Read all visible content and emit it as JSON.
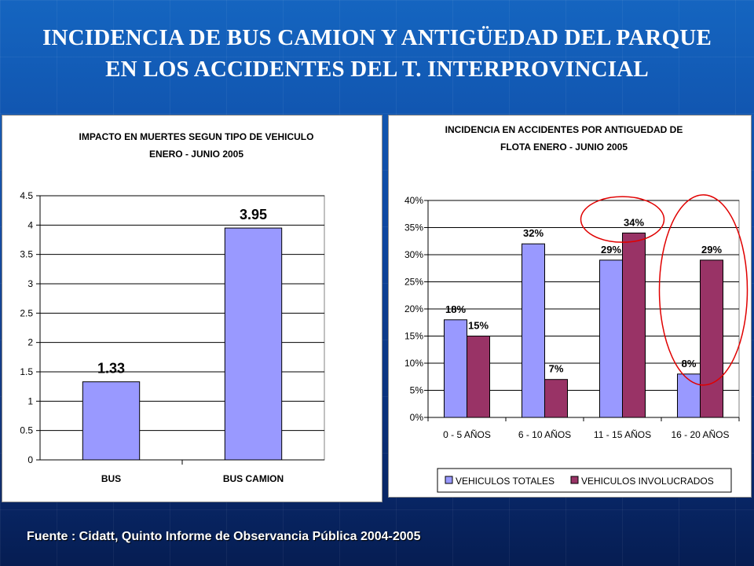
{
  "slide": {
    "title_line1": "INCIDENCIA DE BUS CAMION Y ANTIGÜEDAD DEL PARQUE",
    "title_line2": "EN LOS ACCIDENTES DEL T. INTERPROVINCIAL",
    "source": "Fuente : Cidatt, Quinto Informe de Observancia Pública 2004-2005"
  },
  "chart_data": [
    {
      "type": "bar",
      "title_lines": [
        "IMPACTO EN MUERTES SEGUN TIPO DE VEHICULO",
        "ENERO - JUNIO 2005"
      ],
      "categories": [
        "BUS",
        "BUS CAMION"
      ],
      "values": [
        1.33,
        3.95
      ],
      "value_labels": [
        "1.33",
        "3.95"
      ],
      "ylim": [
        0,
        4.5
      ],
      "yticks": [
        0,
        0.5,
        1,
        1.5,
        2,
        2.5,
        3,
        3.5,
        4,
        4.5
      ],
      "ytick_labels": [
        "0",
        "0.5",
        "1",
        "1.5",
        "2",
        "2.5",
        "3",
        "3.5",
        "4",
        "4.5"
      ],
      "grid": true,
      "bar_color": "#9999ff"
    },
    {
      "type": "bar",
      "title_lines": [
        "INCIDENCIA  EN ACCIDENTES POR ANTIGUEDAD DE",
        "FLOTA ENERO - JUNIO 2005"
      ],
      "categories": [
        "0 - 5 AÑOS",
        "6 - 10 AÑOS",
        "11 - 15 AÑOS",
        "16 - 20 AÑOS"
      ],
      "series": [
        {
          "name": "VEHICULOS TOTALES",
          "values": [
            18,
            32,
            29,
            8
          ],
          "labels": [
            "18%",
            "32%",
            "29%",
            "8%"
          ],
          "color": "#9999ff"
        },
        {
          "name": "VEHICULOS INVOLUCRADOS",
          "values": [
            15,
            7,
            34,
            29
          ],
          "labels": [
            "15%",
            "7%",
            "34%",
            "29%"
          ],
          "color": "#993366"
        }
      ],
      "ylim": [
        0,
        40
      ],
      "yticks": [
        0,
        5,
        10,
        15,
        20,
        25,
        30,
        35,
        40
      ],
      "ytick_labels": [
        "0%",
        "5%",
        "10%",
        "15%",
        "20%",
        "25%",
        "30%",
        "35%",
        "40%"
      ],
      "grid": true,
      "legend": "bottom",
      "highlight_color": "#e00000"
    }
  ]
}
